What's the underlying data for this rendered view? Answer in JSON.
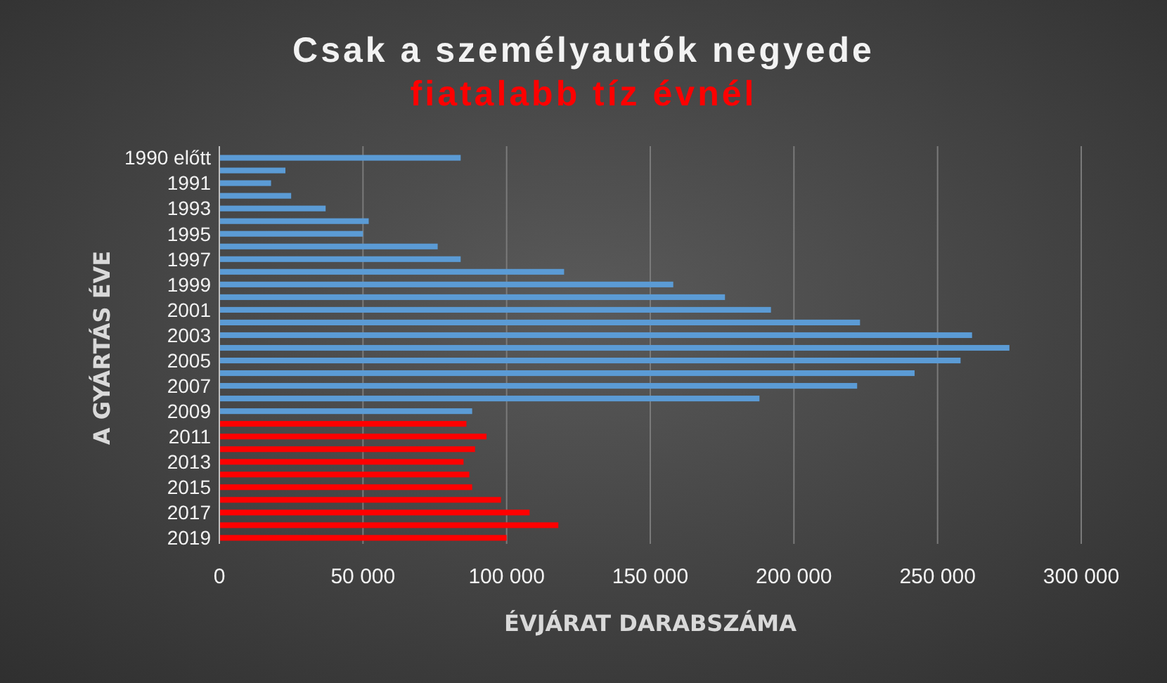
{
  "chart_data": {
    "type": "bar",
    "orientation": "horizontal",
    "title": "Csak a személyautók negyede",
    "subtitle": "fiatalabb tíz évnél",
    "xlabel": "ÉVJÁRAT DARABSZÁMA",
    "ylabel": "A GYÁRTÁS ÉVE",
    "categories": [
      "1990 előtt",
      null,
      "1991",
      null,
      "1993",
      null,
      "1995",
      null,
      "1997",
      null,
      "1999",
      null,
      "2001",
      null,
      "2003",
      null,
      "2005",
      null,
      "2007",
      null,
      "2009",
      null,
      "2011",
      null,
      "2013",
      null,
      "2015",
      null,
      "2017",
      null,
      "2019"
    ],
    "values": [
      84000,
      23000,
      18000,
      25000,
      37000,
      52000,
      50000,
      76000,
      84000,
      120000,
      158000,
      176000,
      192000,
      223000,
      262000,
      275000,
      258000,
      242000,
      222000,
      188000,
      88000,
      86000,
      93000,
      89000,
      85000,
      87000,
      88000,
      98000,
      108000,
      118000,
      100000
    ],
    "colors": [
      "#5b9bd5",
      "#5b9bd5",
      "#5b9bd5",
      "#5b9bd5",
      "#5b9bd5",
      "#5b9bd5",
      "#5b9bd5",
      "#5b9bd5",
      "#5b9bd5",
      "#5b9bd5",
      "#5b9bd5",
      "#5b9bd5",
      "#5b9bd5",
      "#5b9bd5",
      "#5b9bd5",
      "#5b9bd5",
      "#5b9bd5",
      "#5b9bd5",
      "#5b9bd5",
      "#5b9bd5",
      "#5b9bd5",
      "#ff0000",
      "#ff0000",
      "#ff0000",
      "#ff0000",
      "#ff0000",
      "#ff0000",
      "#ff0000",
      "#ff0000",
      "#ff0000",
      "#ff0000"
    ],
    "xlim": [
      0,
      300000
    ],
    "xticks": [
      0,
      {
        "value": 50000,
        "label": "50 000"
      },
      {
        "value": 100000,
        "label": "100 000"
      },
      {
        "value": 150000,
        "label": "150 000"
      },
      {
        "value": 200000,
        "label": "200 000"
      },
      {
        "value": 250000,
        "label": "250 000"
      },
      {
        "value": 300000,
        "label": "300 000"
      }
    ],
    "grid": "x"
  }
}
